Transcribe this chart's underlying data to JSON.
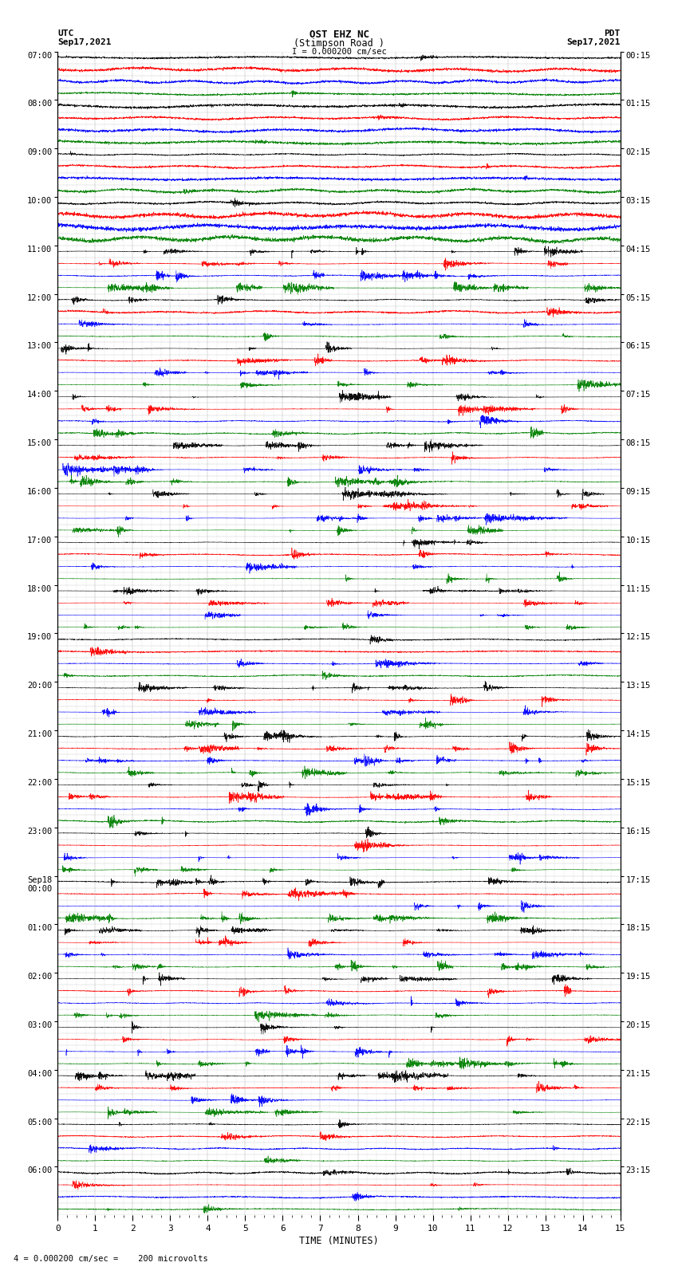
{
  "title_line1": "OST EHZ NC",
  "title_line2": "(Stimpson Road )",
  "title_line3": "I = 0.000200 cm/sec",
  "left_label_line1": "UTC",
  "left_label_line2": "Sep17,2021",
  "right_label_line1": "PDT",
  "right_label_line2": "Sep17,2021",
  "bottom_label": "TIME (MINUTES)",
  "scale_label": " = 0.000200 cm/sec =    200 microvolts",
  "scale_marker": "4",
  "utc_times": [
    "07:00",
    "08:00",
    "09:00",
    "10:00",
    "11:00",
    "12:00",
    "13:00",
    "14:00",
    "15:00",
    "16:00",
    "17:00",
    "18:00",
    "19:00",
    "20:00",
    "21:00",
    "22:00",
    "23:00",
    "Sep18\n00:00",
    "01:00",
    "02:00",
    "03:00",
    "04:00",
    "05:00",
    "06:00"
  ],
  "pdt_times": [
    "00:15",
    "01:15",
    "02:15",
    "03:15",
    "04:15",
    "05:15",
    "06:15",
    "07:15",
    "08:15",
    "09:15",
    "10:15",
    "11:15",
    "12:15",
    "13:15",
    "14:15",
    "15:15",
    "16:15",
    "17:15",
    "18:15",
    "19:15",
    "20:15",
    "21:15",
    "22:15",
    "23:15"
  ],
  "colors": [
    "black",
    "red",
    "blue",
    "green"
  ],
  "bg_color": "#ffffff",
  "xlim": [
    0,
    15
  ],
  "xticks": [
    0,
    1,
    2,
    3,
    4,
    5,
    6,
    7,
    8,
    9,
    10,
    11,
    12,
    13,
    14,
    15
  ],
  "num_hours": 24,
  "traces_per_hour": 4,
  "seed": 42,
  "noise_amplitude": 0.35,
  "active_hours_medium": [
    4,
    5,
    6,
    7,
    8,
    9,
    10,
    11,
    12,
    13,
    14,
    15,
    16,
    17,
    18,
    19,
    20,
    21,
    22,
    23
  ],
  "active_hours_high": [
    4,
    6,
    7,
    8,
    9,
    10,
    11,
    13,
    14,
    15,
    16,
    17,
    18,
    19,
    20,
    21
  ]
}
